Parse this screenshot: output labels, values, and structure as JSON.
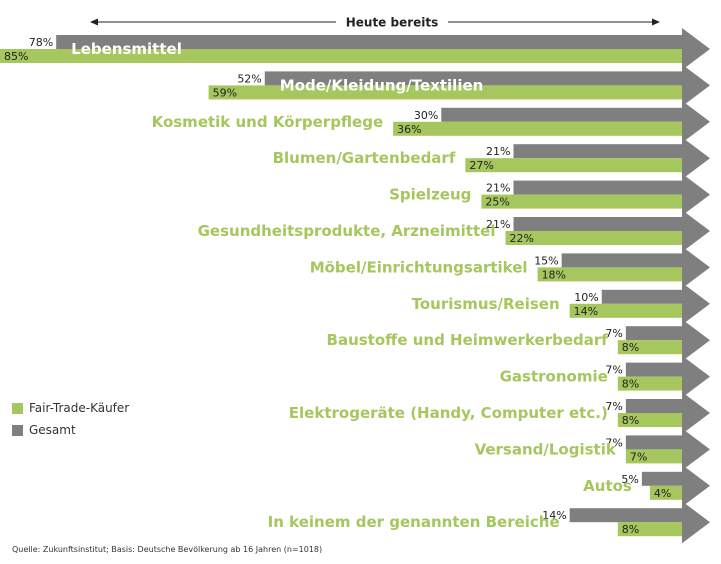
{
  "colors": {
    "fair_trade": "#a6c65e",
    "total": "#7f7f80",
    "label": "#a6c65e"
  },
  "chart_data": {
    "type": "bar",
    "orientation": "horizontal",
    "header": "Heute bereits",
    "categories": [
      "Lebensmittel",
      "Mode/Kleidung/Textilien",
      "Kosmetik und Körperpflege",
      "Blumen/Gartenbedarf",
      "Spielzeug",
      "Gesundheitsprodukte, Arzneimittel",
      "Möbel/Einrichtungsartikel",
      "Tourismus/Reisen",
      "Baustoffe und Heimwerkerbedarf",
      "Gastronomie",
      "Elektrogeräte (Handy, Computer etc.)",
      "Versand/Logistik",
      "Autos",
      "In keinem der genannten Bereiche"
    ],
    "series": [
      {
        "name": "Fair-Trade-Käufer",
        "values": [
          85,
          59,
          36,
          27,
          25,
          22,
          18,
          14,
          8,
          8,
          8,
          7,
          4,
          8
        ],
        "labels": [
          "85%",
          "59%",
          "36%",
          "27%",
          "25%",
          "22%",
          "18%",
          "14%",
          "8%",
          "8%",
          "8%",
          "7%",
          "4%",
          "8%"
        ]
      },
      {
        "name": "Gesamt",
        "values": [
          78,
          52,
          30,
          21,
          21,
          21,
          15,
          10,
          7,
          7,
          7,
          7,
          5,
          14
        ],
        "labels": [
          "78%",
          "52%",
          "30%",
          "21%",
          "21%",
          "21%",
          "15%",
          "10%",
          "7%",
          "7%",
          "7%",
          "7%",
          "5%",
          "14%"
        ]
      }
    ],
    "xlim": [
      0,
      100
    ],
    "legend_position": "left"
  },
  "legend": {
    "fair_trade": "Fair-Trade-Käufer",
    "total": "Gesamt"
  },
  "source": "Quelle: Zukunftsinstitut; Basis: Deutsche Bevölkerung ab 16 Jahren (n=1018)"
}
